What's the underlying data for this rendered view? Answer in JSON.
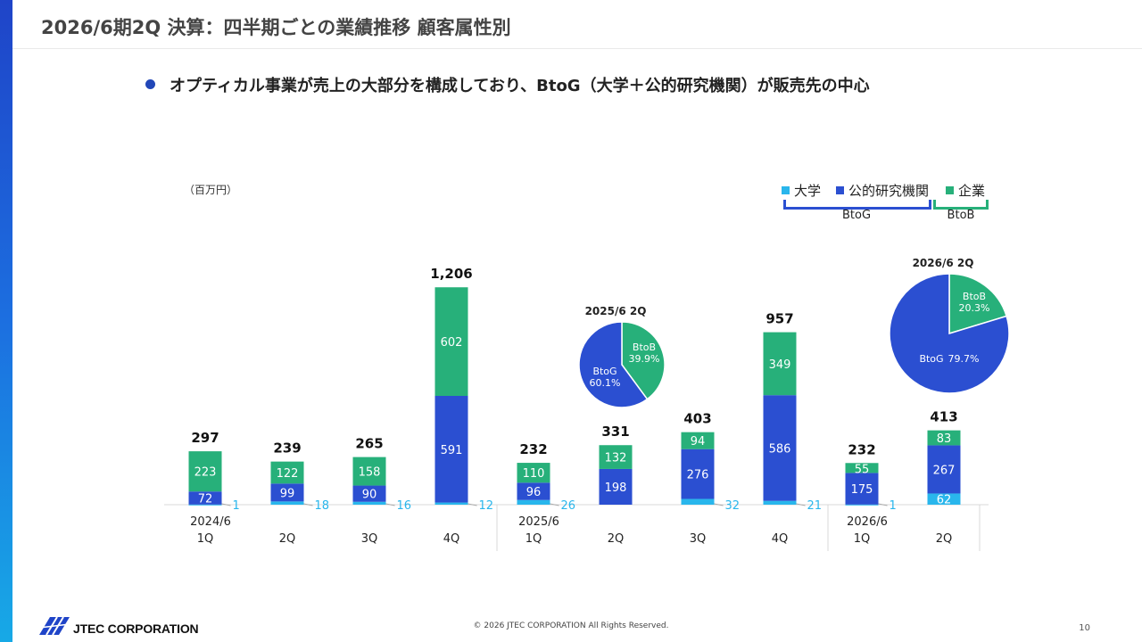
{
  "title": "2026/6期2Q 決算：四半期ごとの業績推移 顧客属性別",
  "subtitle": "オプティカル事業が売上の大部分を構成しており、BtoG（大学＋公的研究機関）が販売先の中心",
  "colors": {
    "university": "#29b6ec",
    "public": "#2b4fd1",
    "corporate": "#27b07a",
    "accent": "#1f44c8"
  },
  "chart_data": {
    "type": "bar",
    "stacked": true,
    "unit": "（百万円）",
    "categories": [
      "1Q",
      "2Q",
      "3Q",
      "4Q",
      "1Q",
      "2Q",
      "3Q",
      "4Q",
      "1Q",
      "2Q"
    ],
    "fiscal_year_labels": [
      {
        "label": "2024/6",
        "index": 0
      },
      {
        "label": "2025/6",
        "index": 4
      },
      {
        "label": "2026/6",
        "index": 8
      }
    ],
    "series": [
      {
        "name": "大学",
        "values": [
          1,
          18,
          16,
          12,
          26,
          0,
          32,
          21,
          1,
          62
        ]
      },
      {
        "name": "公的研究機関",
        "values": [
          72,
          99,
          90,
          591,
          96,
          198,
          276,
          586,
          175,
          267
        ]
      },
      {
        "name": "企業",
        "values": [
          223,
          122,
          158,
          602,
          110,
          132,
          94,
          349,
          55,
          83
        ]
      }
    ],
    "totals": [
      "297",
      "239",
      "265",
      "1,206",
      "232",
      "331",
      "403",
      "957",
      "232",
      "413"
    ],
    "ylim": [
      0,
      1206
    ],
    "legend": {
      "items": [
        "大学",
        "公的研究機関",
        "企業"
      ],
      "groups": [
        "BtoG",
        "BtoB"
      ],
      "position": "top-right"
    },
    "pies": [
      {
        "title": "2025/6 2Q",
        "slices": [
          {
            "label": "BtoB",
            "pct": "39.9%",
            "value": 39.9
          },
          {
            "label": "BtoG",
            "pct": "60.1%",
            "value": 60.1
          }
        ]
      },
      {
        "title": "2026/6 2Q",
        "slices": [
          {
            "label": "BtoB",
            "pct": "20.3%",
            "value": 20.3
          },
          {
            "label": "BtoG",
            "pct": "79.7%",
            "value": 79.7
          }
        ]
      }
    ]
  },
  "footer": {
    "copyright": "© 2026 JTEC CORPORATION All Rights Reserved.",
    "page": "10",
    "company": "JTEC CORPORATION"
  }
}
